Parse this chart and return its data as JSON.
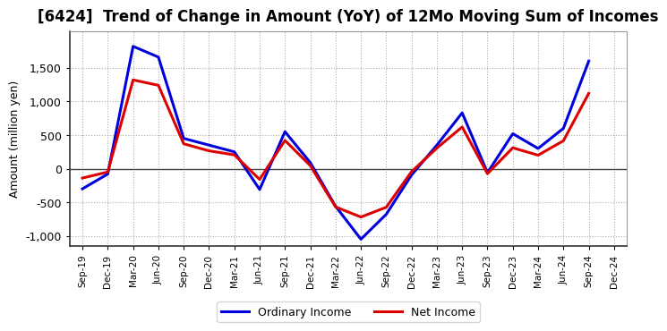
{
  "title": "[6424]  Trend of Change in Amount (YoY) of 12Mo Moving Sum of Incomes",
  "ylabel": "Amount (million yen)",
  "x_labels": [
    "Sep-19",
    "Dec-19",
    "Mar-20",
    "Jun-20",
    "Sep-20",
    "Dec-20",
    "Mar-21",
    "Jun-21",
    "Sep-21",
    "Dec-21",
    "Mar-22",
    "Jun-22",
    "Sep-22",
    "Dec-22",
    "Mar-23",
    "Jun-23",
    "Sep-23",
    "Dec-23",
    "Mar-24",
    "Jun-24",
    "Sep-24",
    "Dec-24"
  ],
  "ordinary_income": [
    -300,
    -80,
    1820,
    1660,
    450,
    350,
    250,
    -310,
    550,
    90,
    -560,
    -1050,
    -680,
    -95,
    350,
    830,
    -60,
    520,
    300,
    600,
    1600,
    null
  ],
  "net_income": [
    -140,
    -50,
    1320,
    1240,
    370,
    265,
    205,
    -160,
    420,
    45,
    -570,
    -720,
    -575,
    -45,
    305,
    620,
    -75,
    310,
    200,
    415,
    1120,
    null
  ],
  "ordinary_income_color": "#0000dd",
  "net_income_color": "#dd0000",
  "background_color": "#ffffff",
  "plot_bg_color": "#ffffff",
  "grid_color": "#aaaaaa",
  "ylim": [
    -1150,
    2050
  ],
  "yticks": [
    -1000,
    -500,
    0,
    500,
    1000,
    1500
  ],
  "title_fontsize": 12,
  "legend_labels": [
    "Ordinary Income",
    "Net Income"
  ],
  "line_width": 2.2
}
